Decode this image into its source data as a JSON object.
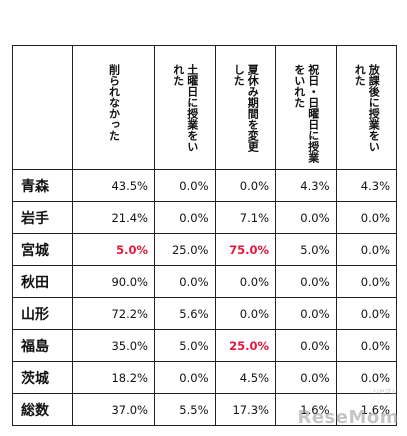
{
  "table": {
    "columns": [
      "削られなかった",
      "土曜日に授業をい\nれた",
      "夏休み期間を変更\nした",
      "祝日・日曜日に授業\nをいれた",
      "放課後に授業をい\nれた"
    ],
    "rows": [
      {
        "label": "青森",
        "values": [
          "43.5%",
          "0.0%",
          "0.0%",
          "4.3%",
          "4.3%"
        ],
        "red": [
          false,
          false,
          false,
          false,
          false
        ]
      },
      {
        "label": "岩手",
        "values": [
          "21.4%",
          "0.0%",
          "7.1%",
          "0.0%",
          "0.0%"
        ],
        "red": [
          false,
          false,
          false,
          false,
          false
        ]
      },
      {
        "label": "宮城",
        "values": [
          "5.0%",
          "25.0%",
          "75.0%",
          "5.0%",
          "0.0%"
        ],
        "red": [
          true,
          false,
          true,
          false,
          false
        ]
      },
      {
        "label": "秋田",
        "values": [
          "90.0%",
          "0.0%",
          "0.0%",
          "0.0%",
          "0.0%"
        ],
        "red": [
          false,
          false,
          false,
          false,
          false
        ]
      },
      {
        "label": "山形",
        "values": [
          "72.2%",
          "5.6%",
          "0.0%",
          "0.0%",
          "0.0%"
        ],
        "red": [
          false,
          false,
          false,
          false,
          false
        ]
      },
      {
        "label": "福島",
        "values": [
          "35.0%",
          "5.0%",
          "25.0%",
          "0.0%",
          "0.0%"
        ],
        "red": [
          false,
          false,
          true,
          false,
          false
        ]
      },
      {
        "label": "茨城",
        "values": [
          "18.2%",
          "0.0%",
          "4.5%",
          "0.0%",
          "0.0%"
        ],
        "red": [
          false,
          false,
          false,
          false,
          false
        ]
      },
      {
        "label": "総数",
        "values": [
          "37.0%",
          "5.5%",
          "17.3%",
          "1.6%",
          "1.6%"
        ],
        "red": [
          false,
          false,
          false,
          false,
          false
        ]
      }
    ]
  },
  "colors": {
    "highlight": "#e0193a",
    "border": "#222222"
  },
  "watermark": {
    "logo": "ReseMom",
    "sub": "リセマム"
  }
}
